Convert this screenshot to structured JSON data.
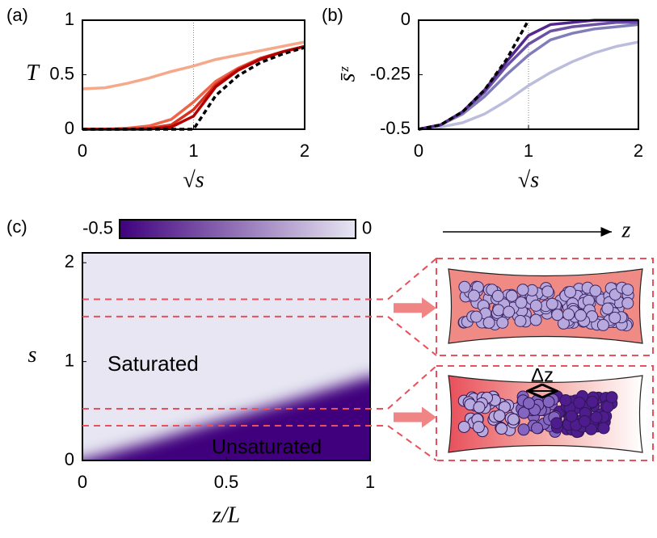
{
  "chart_data": [
    {
      "type": "line",
      "panel_label": "(a)",
      "xlabel": "√s",
      "ylabel": "T",
      "x": [
        0,
        0.2,
        0.4,
        0.6,
        0.8,
        1.0,
        1.2,
        1.4,
        1.6,
        1.8,
        2.0
      ],
      "xlim": [
        0,
        2
      ],
      "xticks": [
        0,
        1,
        2
      ],
      "ylim": [
        0,
        1
      ],
      "yticks": [
        0,
        0.5,
        1
      ],
      "vline": 1,
      "series": [
        {
          "color": "#f5a98a",
          "linestyle": "solid",
          "values": [
            0.37,
            0.38,
            0.42,
            0.47,
            0.53,
            0.58,
            0.64,
            0.68,
            0.72,
            0.76,
            0.8
          ]
        },
        {
          "color": "#ef6548",
          "linestyle": "solid",
          "values": [
            0,
            0,
            0.01,
            0.03,
            0.09,
            0.25,
            0.44,
            0.56,
            0.65,
            0.71,
            0.76
          ]
        },
        {
          "color": "#d7301f",
          "linestyle": "solid",
          "values": [
            0,
            0,
            0,
            0.01,
            0.04,
            0.18,
            0.41,
            0.55,
            0.65,
            0.71,
            0.76
          ]
        },
        {
          "color": "#b30000",
          "linestyle": "solid",
          "values": [
            0,
            0,
            0,
            0,
            0.02,
            0.12,
            0.39,
            0.54,
            0.64,
            0.71,
            0.76
          ]
        },
        {
          "color": "#000000",
          "linestyle": "dashed",
          "values": [
            0,
            0,
            0,
            0,
            0,
            0,
            0.31,
            0.49,
            0.61,
            0.69,
            0.75
          ]
        }
      ]
    },
    {
      "type": "line",
      "panel_label": "(b)",
      "xlabel": "√s",
      "ylabel": "s̄ᶻ",
      "x": [
        0,
        0.2,
        0.4,
        0.6,
        0.8,
        1.0,
        1.2,
        1.4,
        1.6,
        1.8,
        2.0
      ],
      "xlim": [
        0,
        2
      ],
      "xticks": [
        0,
        1,
        2
      ],
      "ylim": [
        -0.5,
        0
      ],
      "yticks": [
        -0.5,
        -0.25,
        0
      ],
      "vline": 1,
      "series": [
        {
          "color": "#bcbddc",
          "linestyle": "solid",
          "values": [
            -0.5,
            -0.49,
            -0.47,
            -0.43,
            -0.37,
            -0.3,
            -0.24,
            -0.19,
            -0.15,
            -0.12,
            -0.1
          ]
        },
        {
          "color": "#807dba",
          "linestyle": "solid",
          "values": [
            -0.5,
            -0.48,
            -0.43,
            -0.35,
            -0.25,
            -0.16,
            -0.09,
            -0.06,
            -0.04,
            -0.03,
            -0.02
          ]
        },
        {
          "color": "#6a51a3",
          "linestyle": "solid",
          "values": [
            -0.5,
            -0.48,
            -0.42,
            -0.33,
            -0.21,
            -0.11,
            -0.05,
            -0.03,
            -0.02,
            -0.01,
            -0.01
          ]
        },
        {
          "color": "#54278f",
          "linestyle": "solid",
          "values": [
            -0.5,
            -0.48,
            -0.42,
            -0.32,
            -0.19,
            -0.07,
            -0.02,
            -0.01,
            0,
            0,
            0
          ]
        },
        {
          "color": "#000000",
          "linestyle": "dashed",
          "values": [
            -0.5,
            -0.48,
            -0.42,
            -0.32,
            -0.18,
            0,
            null,
            null,
            null,
            null,
            null
          ]
        }
      ]
    },
    {
      "type": "heatmap",
      "panel_label": "(c)",
      "xlabel": "z/L",
      "ylabel": "s",
      "xlim": [
        0,
        1
      ],
      "xticks": [
        0,
        0.5,
        1
      ],
      "ylim": [
        0,
        2.1
      ],
      "yticks": [
        0,
        1,
        2
      ],
      "x": [
        0,
        0.25,
        0.5,
        0.75,
        1
      ],
      "boundary": [
        0,
        0.2,
        0.42,
        0.63,
        0.85
      ],
      "colorbar": {
        "lim": [
          -0.5,
          0
        ],
        "ticks": [
          -0.5,
          0
        ],
        "colors": [
          "#3f007d",
          "#e7e6f2"
        ]
      },
      "annotations": [
        {
          "text": "Saturated",
          "color": "#3f007d"
        },
        {
          "text": "Unsaturated",
          "color": "#dcdaec"
        }
      ],
      "hlines": [
        1.63,
        1.455,
        0.523,
        0.351
      ],
      "hline_color": "#e8505b",
      "schematic": {
        "axis_label": "z",
        "shift_label": "Δz"
      }
    }
  ]
}
